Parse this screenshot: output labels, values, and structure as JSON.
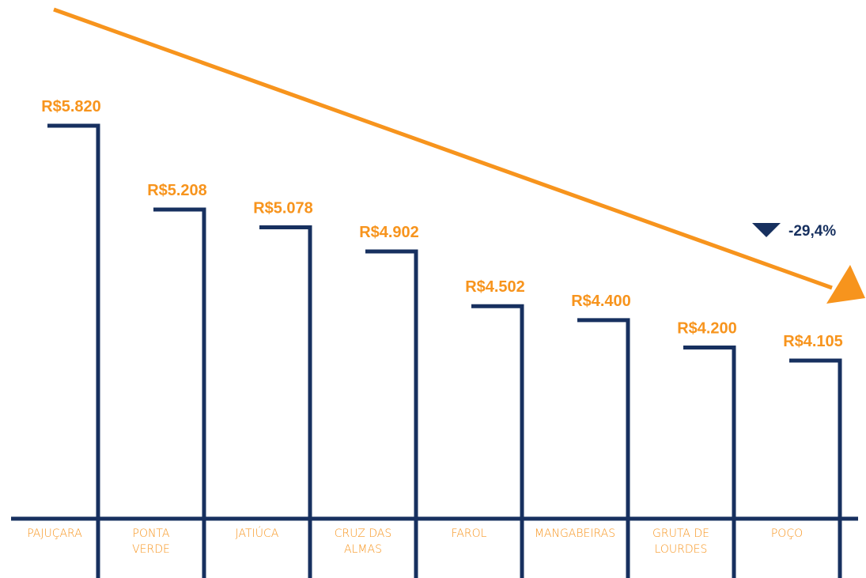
{
  "colors": {
    "accent": "#f7941d",
    "navy": "#17305f",
    "background": "#ffffff"
  },
  "change_indicator": {
    "icon": "triangle-down-icon",
    "label": "-29,4%"
  },
  "trend_arrow": {
    "icon": "trend-down-arrow-icon"
  },
  "chart_data": {
    "type": "bar",
    "title": "",
    "xlabel": "",
    "ylabel": "",
    "categories": [
      [
        "PAJUÇARA"
      ],
      [
        "PONTA",
        "VERDE"
      ],
      [
        "JATIÚCA"
      ],
      [
        "CRUZ DAS",
        "ALMAS"
      ],
      [
        "FAROL"
      ],
      [
        "MANGABEIRAS"
      ],
      [
        "GRUTA DE",
        "LOURDES"
      ],
      [
        "POÇO"
      ]
    ],
    "values": [
      5820,
      5208,
      5078,
      4902,
      4502,
      4400,
      4200,
      4105
    ],
    "value_labels": [
      "R$5.820",
      "R$5.208",
      "R$5.078",
      "R$4.902",
      "R$4.502",
      "R$4.400",
      "R$4.200",
      "R$4.105"
    ],
    "grid": false,
    "legend": "none"
  }
}
